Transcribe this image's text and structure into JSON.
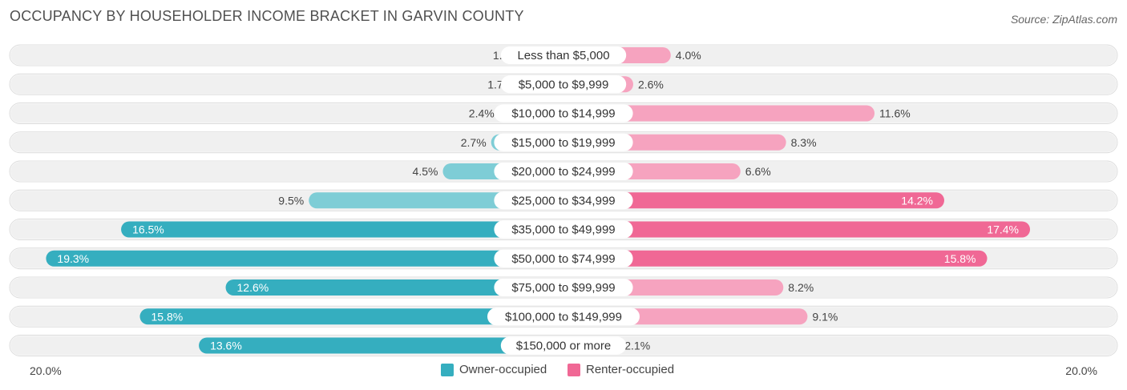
{
  "title": "OCCUPANCY BY HOUSEHOLDER INCOME BRACKET IN GARVIN COUNTY",
  "source": "Source: ZipAtlas.com",
  "axis": {
    "left_label": "20.0%",
    "right_label": "20.0%"
  },
  "colors": {
    "owner_light": "#7ecdd6",
    "owner_dark": "#35aebf",
    "renter_light": "#f6a3bf",
    "renter_dark": "#f06895",
    "row_bg": "#f0f0f0"
  },
  "legend": [
    {
      "label": "Owner-occupied",
      "color": "#35aebf"
    },
    {
      "label": "Renter-occupied",
      "color": "#f06895"
    }
  ],
  "chart_data": {
    "type": "bar",
    "orientation": "horizontal-diverging",
    "title": "OCCUPANCY BY HOUSEHOLDER INCOME BRACKET IN GARVIN COUNTY",
    "xlim": [
      -20,
      20
    ],
    "categories": [
      "Less than $5,000",
      "$5,000 to $9,999",
      "$10,000 to $14,999",
      "$15,000 to $19,999",
      "$20,000 to $24,999",
      "$25,000 to $34,999",
      "$35,000 to $49,999",
      "$50,000 to $74,999",
      "$75,000 to $99,999",
      "$100,000 to $149,999",
      "$150,000 or more"
    ],
    "series": [
      {
        "name": "Owner-occupied",
        "values": [
          1.5,
          1.7,
          2.4,
          2.7,
          4.5,
          9.5,
          16.5,
          19.3,
          12.6,
          15.8,
          13.6
        ]
      },
      {
        "name": "Renter-occupied",
        "values": [
          4.0,
          2.6,
          11.6,
          8.3,
          6.6,
          14.2,
          17.4,
          15.8,
          8.2,
          9.1,
          2.1
        ]
      }
    ],
    "legend_position": "bottom-center"
  }
}
